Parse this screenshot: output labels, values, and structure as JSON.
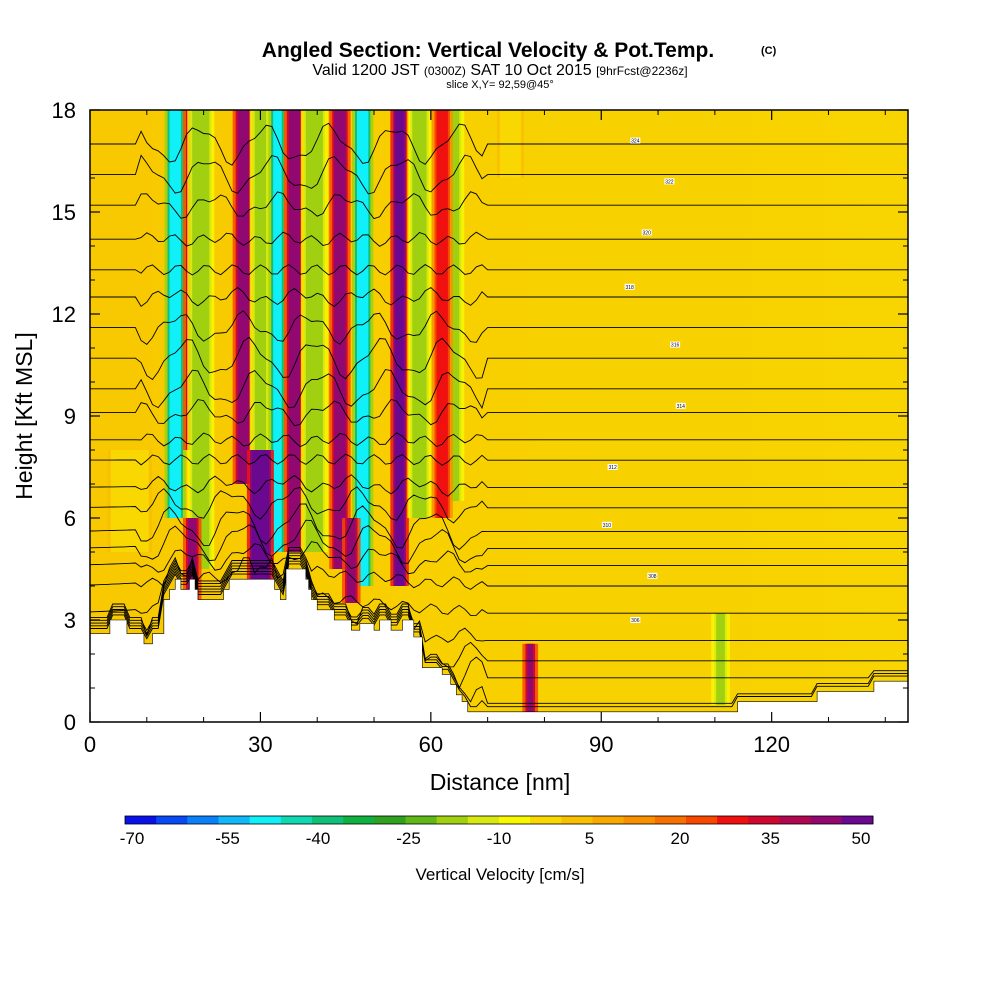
{
  "chart_data": {
    "type": "heatmap",
    "title": "Angled Section: Vertical Velocity & Pot.Temp.",
    "title_mark": "(C)",
    "subtitle_parts": [
      "Valid 1200 JST",
      "(0300Z)",
      "SAT 10 Oct 2015",
      "[9hrFcst@2236z]"
    ],
    "slice_label": "slice X,Y= 92,59@45°",
    "xlabel": "Distance [nm]",
    "ylabel": "Height [Kft MSL]",
    "xlim": [
      0,
      144
    ],
    "ylim": [
      0,
      18
    ],
    "x_ticks": [
      0,
      30,
      60,
      90,
      120
    ],
    "y_ticks": [
      0,
      3,
      6,
      9,
      12,
      15,
      18
    ],
    "colorbar": {
      "label": "Vertical Velocity [cm/s]",
      "ticks": [
        "-70",
        "-55",
        "-40",
        "-25",
        "-10",
        "5",
        "20",
        "35",
        "50"
      ],
      "colors": [
        "#0a10e8",
        "#0848f5",
        "#0a80f8",
        "#10b8f8",
        "#10f0f8",
        "#10d8b0",
        "#10c078",
        "#10b040",
        "#30a020",
        "#60b818",
        "#a0d010",
        "#d8e810",
        "#f8f800",
        "#f8d800",
        "#f8c000",
        "#f8a800",
        "#f89000",
        "#f87000",
        "#f84800",
        "#f01010",
        "#d00830",
        "#b00850",
        "#900870",
        "#6a0890"
      ]
    },
    "vertical_velocity_columns": [
      {
        "x": 15,
        "w": 2,
        "y0": 6,
        "y1": 18,
        "value": -55
      },
      {
        "x": 18,
        "w": 1.5,
        "y0": 8,
        "y1": 18,
        "value": 35
      },
      {
        "x": 19.5,
        "w": 3,
        "y0": 4.5,
        "y1": 18,
        "value": -25
      },
      {
        "x": 27,
        "w": 2,
        "y0": 7,
        "y1": 18,
        "value": 35
      },
      {
        "x": 30,
        "w": 2,
        "y0": 4.5,
        "y1": 18,
        "value": -25
      },
      {
        "x": 33,
        "w": 1.5,
        "y0": 5,
        "y1": 18,
        "value": -55
      },
      {
        "x": 36,
        "w": 2,
        "y0": 5,
        "y1": 18,
        "value": 35
      },
      {
        "x": 39.5,
        "w": 3,
        "y0": 5,
        "y1": 18,
        "value": -25
      },
      {
        "x": 44,
        "w": 2,
        "y0": 4.5,
        "y1": 18,
        "value": 35
      },
      {
        "x": 48,
        "w": 2,
        "y0": 4,
        "y1": 18,
        "value": -55
      },
      {
        "x": 54.5,
        "w": 1.5,
        "y0": 4,
        "y1": 18,
        "value": 50
      },
      {
        "x": 58,
        "w": 2.5,
        "y0": 6,
        "y1": 18,
        "value": -25
      },
      {
        "x": 64,
        "w": 2,
        "y0": 6.5,
        "y1": 18,
        "value": -25
      },
      {
        "x": 62,
        "w": 2,
        "y0": 6,
        "y1": 18,
        "value": 20
      },
      {
        "x": 74,
        "w": 3,
        "y0": 16,
        "y1": 18,
        "value": -10
      },
      {
        "x": 77.5,
        "w": 1,
        "y0": 0.3,
        "y1": 2.3,
        "value": 35
      },
      {
        "x": 111,
        "w": 1.5,
        "y0": 0.5,
        "y1": 3.2,
        "value": -25
      },
      {
        "x": 18,
        "w": 1.5,
        "y0": 3.5,
        "y1": 6,
        "value": 35
      },
      {
        "x": 30,
        "w": 3,
        "y0": 4,
        "y1": 8,
        "value": 50
      },
      {
        "x": 46,
        "w": 1.5,
        "y0": 3.5,
        "y1": 6,
        "value": 35
      },
      {
        "x": 7,
        "w": 6,
        "y0": 5,
        "y1": 8,
        "value": -10
      }
    ],
    "terrain_profile": [
      [
        0,
        2.6
      ],
      [
        3.5,
        2.6
      ],
      [
        3.5,
        3
      ],
      [
        6.5,
        3
      ],
      [
        6.5,
        2.6
      ],
      [
        9.5,
        2.6
      ],
      [
        9.5,
        2.3
      ],
      [
        11,
        2.3
      ],
      [
        11,
        2.6
      ],
      [
        13,
        2.6
      ],
      [
        13,
        3.6
      ],
      [
        14,
        3.6
      ],
      [
        14,
        3.9
      ],
      [
        15,
        3.9
      ],
      [
        15,
        4.2
      ],
      [
        16,
        4.2
      ],
      [
        16,
        3.9
      ],
      [
        17.5,
        3.9
      ],
      [
        17.5,
        4.2
      ],
      [
        18.5,
        4.2
      ],
      [
        18.5,
        3.9
      ],
      [
        19,
        3.9
      ],
      [
        19,
        3.6
      ],
      [
        23.5,
        3.6
      ],
      [
        23.5,
        3.9
      ],
      [
        24.5,
        3.9
      ],
      [
        24.5,
        4.2
      ],
      [
        32.5,
        4.2
      ],
      [
        32.5,
        3.9
      ],
      [
        33.5,
        3.9
      ],
      [
        33.5,
        3.6
      ],
      [
        34.5,
        3.6
      ],
      [
        34.5,
        4.5
      ],
      [
        38,
        4.5
      ],
      [
        38,
        4.2
      ],
      [
        38.5,
        4.2
      ],
      [
        38.5,
        3.9
      ],
      [
        39,
        3.9
      ],
      [
        39,
        3.6
      ],
      [
        40,
        3.6
      ],
      [
        40,
        3.3
      ],
      [
        43,
        3.3
      ],
      [
        43,
        3.0
      ],
      [
        46,
        3.0
      ],
      [
        46,
        2.7
      ],
      [
        47.5,
        2.7
      ],
      [
        47.5,
        2.9
      ],
      [
        50,
        2.9
      ],
      [
        50,
        2.7
      ],
      [
        51,
        2.7
      ],
      [
        51,
        3.0
      ],
      [
        53,
        3.0
      ],
      [
        53,
        2.7
      ],
      [
        55,
        2.7
      ],
      [
        55,
        3.0
      ],
      [
        57,
        3.0
      ],
      [
        57,
        2.5
      ],
      [
        58.5,
        2.5
      ],
      [
        58.5,
        1.6
      ],
      [
        60,
        1.6
      ],
      [
        60,
        1.6
      ],
      [
        62,
        1.6
      ],
      [
        62,
        1.4
      ],
      [
        63.5,
        1.4
      ],
      [
        63.5,
        1.1
      ],
      [
        64.5,
        1.1
      ],
      [
        64.5,
        0.8
      ],
      [
        65.5,
        0.8
      ],
      [
        65.5,
        0.6
      ],
      [
        66.5,
        0.6
      ],
      [
        66.5,
        0.3
      ],
      [
        114,
        0.3
      ],
      [
        114,
        0.6
      ],
      [
        128,
        0.6
      ],
      [
        128,
        0.9
      ],
      [
        138,
        0.9
      ],
      [
        138,
        1.2
      ],
      [
        144,
        1.2
      ]
    ],
    "theta_contours": {
      "count": 24,
      "base_values": [
        0.35,
        0.55,
        1.3,
        1.8,
        2.4,
        3.2,
        4.0,
        4.6,
        5.1,
        5.6,
        6.3,
        6.9,
        7.7,
        8.3,
        9.1,
        9.8,
        10.7,
        11.6,
        12.5,
        13.3,
        14.2,
        15.2,
        16.1,
        17.0
      ]
    },
    "theta_labels": [
      {
        "x": 96,
        "y": 3.0,
        "text": "306"
      },
      {
        "x": 99,
        "y": 4.3,
        "text": "308"
      },
      {
        "x": 91,
        "y": 5.8,
        "text": "310"
      },
      {
        "x": 92,
        "y": 7.5,
        "text": "312"
      },
      {
        "x": 104,
        "y": 9.3,
        "text": "314"
      },
      {
        "x": 103,
        "y": 11.1,
        "text": "316"
      },
      {
        "x": 95,
        "y": 12.8,
        "text": "318"
      },
      {
        "x": 98,
        "y": 14.4,
        "text": "320"
      },
      {
        "x": 102,
        "y": 15.9,
        "text": "322"
      },
      {
        "x": 96,
        "y": 17.1,
        "text": "324"
      }
    ]
  }
}
